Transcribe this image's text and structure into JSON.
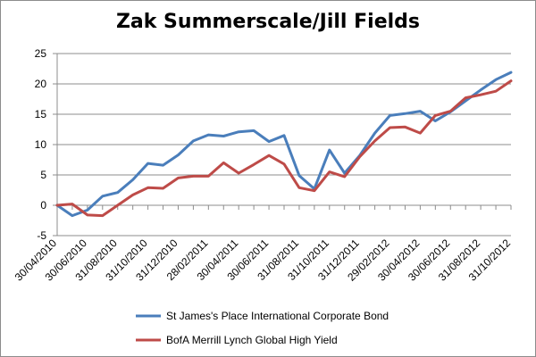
{
  "chart_data": {
    "type": "line",
    "title": "Zak Summerscale/Jill Fields",
    "xlabel": "",
    "ylabel": "",
    "ylim": [
      -5,
      25
    ],
    "yticks": [
      -5,
      0,
      5,
      10,
      15,
      20,
      25
    ],
    "grid": true,
    "legend_position": "bottom",
    "x": [
      "30/04/2010",
      "31/05/2010",
      "30/06/2010",
      "31/07/2010",
      "31/08/2010",
      "30/09/2010",
      "31/10/2010",
      "30/11/2010",
      "31/12/2010",
      "31/01/2011",
      "28/02/2011",
      "31/03/2011",
      "30/04/2011",
      "31/05/2011",
      "30/06/2011",
      "31/07/2011",
      "31/08/2011",
      "30/09/2011",
      "31/10/2011",
      "30/11/2011",
      "31/12/2011",
      "31/01/2012",
      "29/02/2012",
      "31/03/2012",
      "30/04/2012",
      "31/05/2012",
      "30/06/2012",
      "31/07/2012",
      "31/08/2012",
      "30/09/2012",
      "31/10/2012"
    ],
    "xtick_labels": [
      "30/04/2010",
      "30/06/2010",
      "31/08/2010",
      "31/10/2010",
      "31/12/2010",
      "28/02/2011",
      "30/04/2011",
      "30/06/2011",
      "31/08/2011",
      "31/10/2011",
      "31/12/2011",
      "29/02/2012",
      "30/04/2012",
      "30/06/2012",
      "31/08/2012",
      "31/10/2012"
    ],
    "series": [
      {
        "name": "St James's Place International Corporate Bond",
        "color": "#4a7ebb",
        "values": [
          0,
          -1.7,
          -0.8,
          1.5,
          2.1,
          4.2,
          6.9,
          6.6,
          8.3,
          10.6,
          11.6,
          11.4,
          12.1,
          12.3,
          10.5,
          11.5,
          4.9,
          2.7,
          9.1,
          5.3,
          8.2,
          11.9,
          14.8,
          15.1,
          15.5,
          13.9,
          15.4,
          17.2,
          19.0,
          20.7,
          21.9
        ]
      },
      {
        "name": "BofA Merrill Lynch Global High Yield",
        "color": "#be4b48",
        "values": [
          0,
          0.2,
          -1.6,
          -1.7,
          0,
          1.7,
          2.9,
          2.8,
          4.5,
          4.8,
          4.8,
          7.0,
          5.3,
          6.7,
          8.2,
          6.8,
          2.9,
          2.4,
          5.5,
          4.7,
          8.0,
          10.6,
          12.8,
          12.9,
          11.9,
          14.8,
          15.5,
          17.7,
          18.2,
          18.8,
          20.5
        ]
      }
    ]
  }
}
